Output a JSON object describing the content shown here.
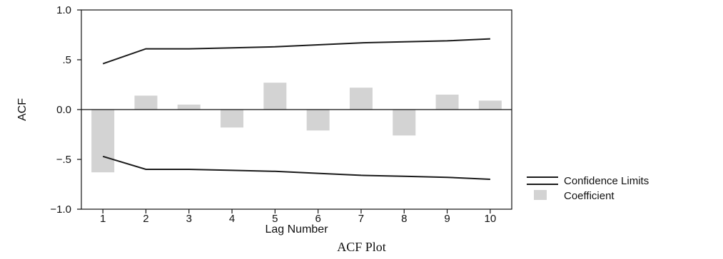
{
  "chart_data": {
    "type": "bar",
    "xlabel": "Lag Number",
    "ylabel": "ACF",
    "categories": [
      "1",
      "2",
      "3",
      "4",
      "5",
      "6",
      "7",
      "8",
      "9",
      "10"
    ],
    "series": [
      {
        "name": "Coefficient",
        "values": [
          -0.63,
          0.14,
          0.05,
          -0.18,
          0.27,
          -0.21,
          0.22,
          -0.26,
          0.15,
          0.09
        ]
      }
    ],
    "confidence_limits": {
      "name": "Confidence Limits",
      "upper": [
        0.46,
        0.61,
        0.61,
        0.62,
        0.63,
        0.65,
        0.67,
        0.68,
        0.69,
        0.71
      ],
      "lower": [
        -0.47,
        -0.6,
        -0.6,
        -0.61,
        -0.62,
        -0.64,
        -0.66,
        -0.67,
        -0.68,
        -0.7
      ]
    },
    "ylim": [
      -1.0,
      1.0
    ],
    "yticks": [
      {
        "value": 1.0,
        "label": "1.0"
      },
      {
        "value": 0.5,
        "label": ".5"
      },
      {
        "value": 0.0,
        "label": "0.0"
      },
      {
        "value": -0.5,
        "label": "−.5"
      },
      {
        "value": -1.0,
        "label": "−1.0"
      }
    ],
    "legend": {
      "position": "right",
      "entries": [
        {
          "label": "Confidence Limits",
          "kind": "line",
          "color": "#1a1a1a"
        },
        {
          "label": "Coefficient",
          "kind": "bar",
          "color": "#d3d3d3"
        }
      ]
    },
    "colors": {
      "bar": "#d3d3d3",
      "line": "#1a1a1a",
      "axis": "#111111"
    }
  },
  "caption": "ACF Plot"
}
